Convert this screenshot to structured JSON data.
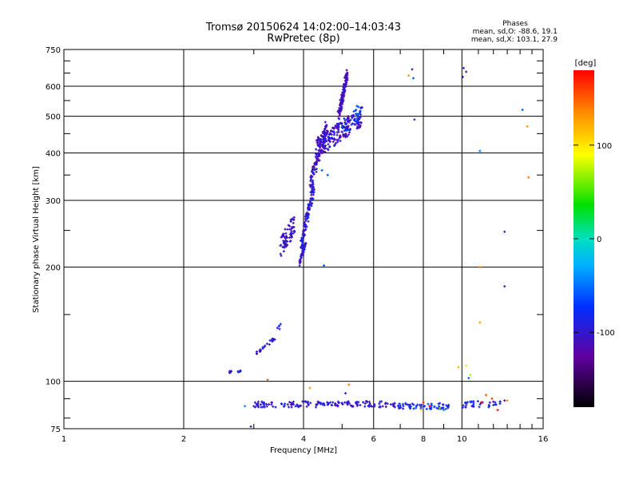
{
  "chart_data": {
    "type": "scatter",
    "title": "Tromsø 20150624 14:02:00–14:03:43",
    "subtitle": "RwPretec (8p)",
    "xlabel": "Frequency [MHz]",
    "ylabel": "Stationary phase Virtual Height [km]",
    "x_scale": "log",
    "y_scale": "log",
    "xlim": [
      1,
      16
    ],
    "ylim": [
      75,
      750
    ],
    "x_ticks": [
      1,
      2,
      4,
      6,
      8,
      10,
      16
    ],
    "x_tick_labels": [
      "1",
      "2",
      "4",
      "6",
      "8",
      "10",
      "16"
    ],
    "y_ticks": [
      75,
      100,
      200,
      300,
      400,
      500,
      600,
      750
    ],
    "y_tick_labels": [
      "75",
      "100",
      "200",
      "300",
      "400",
      "500",
      "600",
      "750"
    ],
    "grid": true,
    "phase_stats": {
      "heading": "Phases",
      "line_o": "mean, sd,O: -88.6, 19.1",
      "line_x": "mean, sd,X: 103.1, 27.9"
    },
    "colorbar": {
      "label": "[deg]",
      "range": [
        -180,
        180
      ],
      "ticks": [
        100,
        0,
        -100
      ],
      "tick_labels": [
        "100",
        "0",
        "-100"
      ]
    },
    "series": [
      {
        "segments": [
          {
            "f_start": 2.6,
            "f_end": 2.8,
            "h_start": 106,
            "h_end": 106,
            "n": 10,
            "phase": -100,
            "hspread": 0.008
          },
          {
            "f_start": 3.05,
            "f_end": 3.4,
            "h_start": 119,
            "h_end": 130,
            "n": 24,
            "phase": -100,
            "hspread": 0.01
          },
          {
            "f_start": 3.45,
            "f_end": 3.5,
            "h_start": 137,
            "h_end": 142,
            "n": 5,
            "phase": -100,
            "hspread": 0.01
          },
          {
            "f_start": 3.5,
            "f_end": 3.8,
            "h_start": 225,
            "h_end": 260,
            "n": 70,
            "phase": -105,
            "hspread": 0.06
          },
          {
            "f_start": 3.9,
            "f_end": 4.05,
            "h_start": 205,
            "h_end": 230,
            "n": 40,
            "phase": -100,
            "hspread": 0.02
          },
          {
            "f_start": 3.95,
            "f_end": 4.25,
            "h_start": 230,
            "h_end": 330,
            "n": 110,
            "phase": -100,
            "hspread": 0.04
          },
          {
            "f_start": 4.15,
            "f_end": 4.6,
            "h_start": 330,
            "h_end": 480,
            "n": 90,
            "phase": -105,
            "hspread": 0.05
          },
          {
            "f_start": 4.3,
            "f_end": 5.6,
            "h_start": 410,
            "h_end": 500,
            "n": 220,
            "phase": -105,
            "hspread": 0.06
          },
          {
            "f_start": 4.9,
            "f_end": 5.15,
            "h_start": 500,
            "h_end": 650,
            "n": 120,
            "phase": -110,
            "hspread": 0.03
          },
          {
            "f_start": 5.0,
            "f_end": 5.6,
            "h_start": 460,
            "h_end": 520,
            "n": 30,
            "phase": -70,
            "hspread": 0.05
          },
          {
            "f_start": 3.0,
            "f_end": 6.8,
            "h_start": 87,
            "h_end": 87,
            "n": 150,
            "phase": -100,
            "hspread": 0.018
          },
          {
            "f_start": 6.8,
            "f_end": 9.3,
            "h_start": 86,
            "h_end": 86,
            "n": 60,
            "phase": -80,
            "hspread": 0.018
          },
          {
            "f_start": 10.0,
            "f_end": 12.6,
            "h_start": 87,
            "h_end": 87,
            "n": 35,
            "phase": -90,
            "hspread": 0.02
          }
        ],
        "points": [
          {
            "f": 7.5,
            "h": 665,
            "phase": -120
          },
          {
            "f": 7.55,
            "h": 630,
            "phase": -60
          },
          {
            "f": 7.35,
            "h": 640,
            "phase": 130
          },
          {
            "f": 7.6,
            "h": 490,
            "phase": -110
          },
          {
            "f": 10.1,
            "h": 670,
            "phase": -110
          },
          {
            "f": 10.25,
            "h": 655,
            "phase": -110
          },
          {
            "f": 10.05,
            "h": 635,
            "phase": -110
          },
          {
            "f": 14.2,
            "h": 520,
            "phase": -60
          },
          {
            "f": 14.6,
            "h": 470,
            "phase": 130
          },
          {
            "f": 11.1,
            "h": 405,
            "phase": -50
          },
          {
            "f": 14.7,
            "h": 345,
            "phase": 140
          },
          {
            "f": 12.8,
            "h": 248,
            "phase": -110
          },
          {
            "f": 11.1,
            "h": 200,
            "phase": 140
          },
          {
            "f": 12.8,
            "h": 178,
            "phase": -120
          },
          {
            "f": 11.1,
            "h": 143,
            "phase": 130
          },
          {
            "f": 10.25,
            "h": 110,
            "phase": 100
          },
          {
            "f": 9.8,
            "h": 109,
            "phase": 120
          },
          {
            "f": 10.4,
            "h": 102,
            "phase": -60
          },
          {
            "f": 10.5,
            "h": 104,
            "phase": 70
          },
          {
            "f": 4.15,
            "h": 96,
            "phase": 130
          },
          {
            "f": 5.1,
            "h": 93,
            "phase": -110
          },
          {
            "f": 5.2,
            "h": 98,
            "phase": 140
          },
          {
            "f": 3.25,
            "h": 101,
            "phase": 150
          },
          {
            "f": 2.85,
            "h": 86,
            "phase": -40
          },
          {
            "f": 2.95,
            "h": 76,
            "phase": -110
          },
          {
            "f": 4.5,
            "h": 202,
            "phase": -60
          },
          {
            "f": 4.6,
            "h": 350,
            "phase": -60
          },
          {
            "f": 4.45,
            "h": 360,
            "phase": -60
          },
          {
            "f": 11.2,
            "h": 88,
            "phase": 175
          },
          {
            "f": 12.3,
            "h": 84,
            "phase": 175
          },
          {
            "f": 11.9,
            "h": 90,
            "phase": 160
          },
          {
            "f": 8.3,
            "h": 86,
            "phase": 175
          },
          {
            "f": 8.0,
            "h": 88,
            "phase": 170
          },
          {
            "f": 9.0,
            "h": 84,
            "phase": -40
          },
          {
            "f": 11.5,
            "h": 92,
            "phase": 150
          },
          {
            "f": 12.8,
            "h": 89,
            "phase": -120
          },
          {
            "f": 13.0,
            "h": 89,
            "phase": 130
          },
          {
            "f": 7.9,
            "h": 84,
            "phase": 100
          },
          {
            "f": 8.8,
            "h": 85,
            "phase": 60
          }
        ]
      }
    ]
  }
}
